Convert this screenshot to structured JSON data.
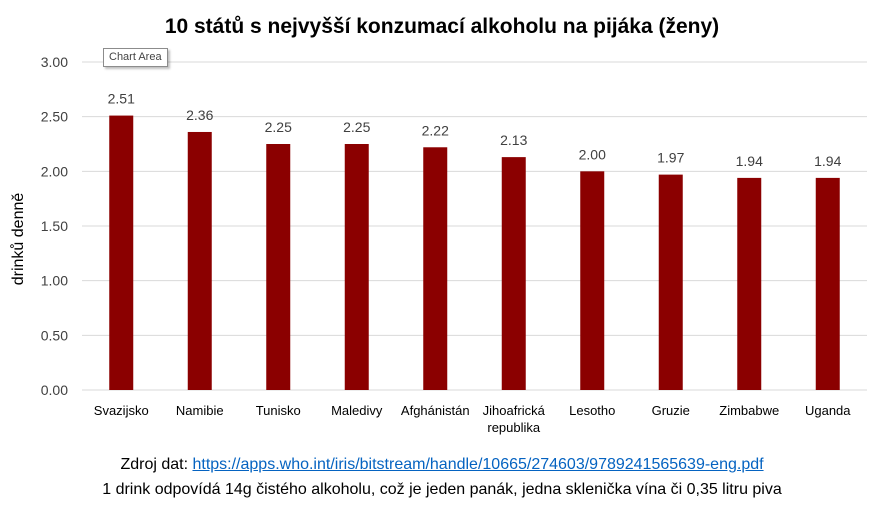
{
  "chart_tooltip": "Chart Area",
  "footer": {
    "source_label": "Zdroj dat: ",
    "source_url": "https://apps.who.int/iris/bitstream/handle/10665/274603/9789241565639-eng.pdf",
    "note": "1 drink odpovídá 14g čistého alkoholu, což je jeden panák, jedna sklenička vína či 0,35 litru piva"
  },
  "colors": {
    "bar": "#8b0000",
    "grid": "#d9d9d9",
    "text": "#404040"
  },
  "chart_data": {
    "type": "bar",
    "title": "10 států s nejvyšší konzumací alkoholu na pijáka (ženy)",
    "xlabel": "",
    "ylabel": "drinků denně",
    "categories": [
      "Svazijsko",
      "Namibie",
      "Tunisko",
      "Maledivy",
      "Afghánistán",
      "Jihoafrická republika",
      "Lesotho",
      "Gruzie",
      "Zimbabwe",
      "Uganda"
    ],
    "values": [
      2.51,
      2.36,
      2.25,
      2.25,
      2.22,
      2.13,
      2.0,
      1.97,
      1.94,
      1.94
    ],
    "data_labels": [
      "2.51",
      "2.36",
      "2.25",
      "2.25",
      "2.22",
      "2.13",
      "2.00",
      "1.97",
      "1.94",
      "1.94"
    ],
    "yticks": [
      "0.00",
      "0.50",
      "1.00",
      "1.50",
      "2.00",
      "2.50",
      "3.00"
    ],
    "ylim": [
      0,
      3
    ],
    "grid": true,
    "legend": "none"
  }
}
